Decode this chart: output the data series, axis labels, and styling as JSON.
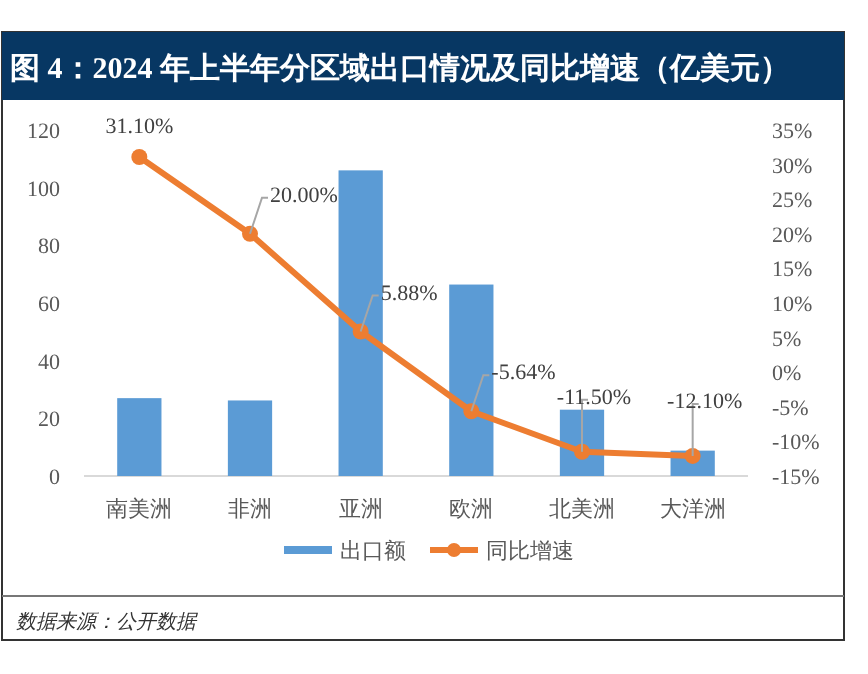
{
  "chart_data": {
    "type": "bar",
    "title": "图 4：2024 年上半年分区域出口情况及同比增速（亿美元）",
    "categories": [
      "南美洲",
      "非洲",
      "亚洲",
      "欧洲",
      "北美洲",
      "大洋洲"
    ],
    "series": [
      {
        "name": "出口额",
        "color": "#5b9bd5",
        "values": [
          27,
          26.2,
          106,
          66.4,
          23,
          8.8
        ]
      },
      {
        "name": "同比增速",
        "type": "line",
        "axis": "y2",
        "color": "#ed7d31",
        "marker": "circle",
        "values": [
          31.1,
          20.0,
          5.88,
          -5.64,
          -11.5,
          -12.1
        ],
        "value_labels": [
          "31.10%",
          "20.00%",
          "5.88%",
          "-5.64%",
          "-11.50%",
          "-12.10%"
        ]
      }
    ],
    "ylim": [
      0,
      120
    ],
    "yticks": [
      0,
      20,
      40,
      60,
      80,
      100,
      120
    ],
    "y2lim": [
      -15,
      35
    ],
    "y2ticks": [
      {
        "value": 35,
        "label": "35%"
      },
      {
        "value": 30,
        "label": "30%"
      },
      {
        "value": 25,
        "label": "25%"
      },
      {
        "value": 20,
        "label": "20%"
      },
      {
        "value": 15,
        "label": "15%"
      },
      {
        "value": 10,
        "label": "10%"
      },
      {
        "value": 5,
        "label": "5%"
      },
      {
        "value": 0,
        "label": "0%"
      },
      {
        "value": -5,
        "label": "-5%"
      },
      {
        "value": -10,
        "label": "-10%"
      },
      {
        "value": -15,
        "label": "-15%"
      }
    ],
    "grid": false,
    "legend": "bottom",
    "annotations": [
      "数据来源：公开数据"
    ]
  }
}
